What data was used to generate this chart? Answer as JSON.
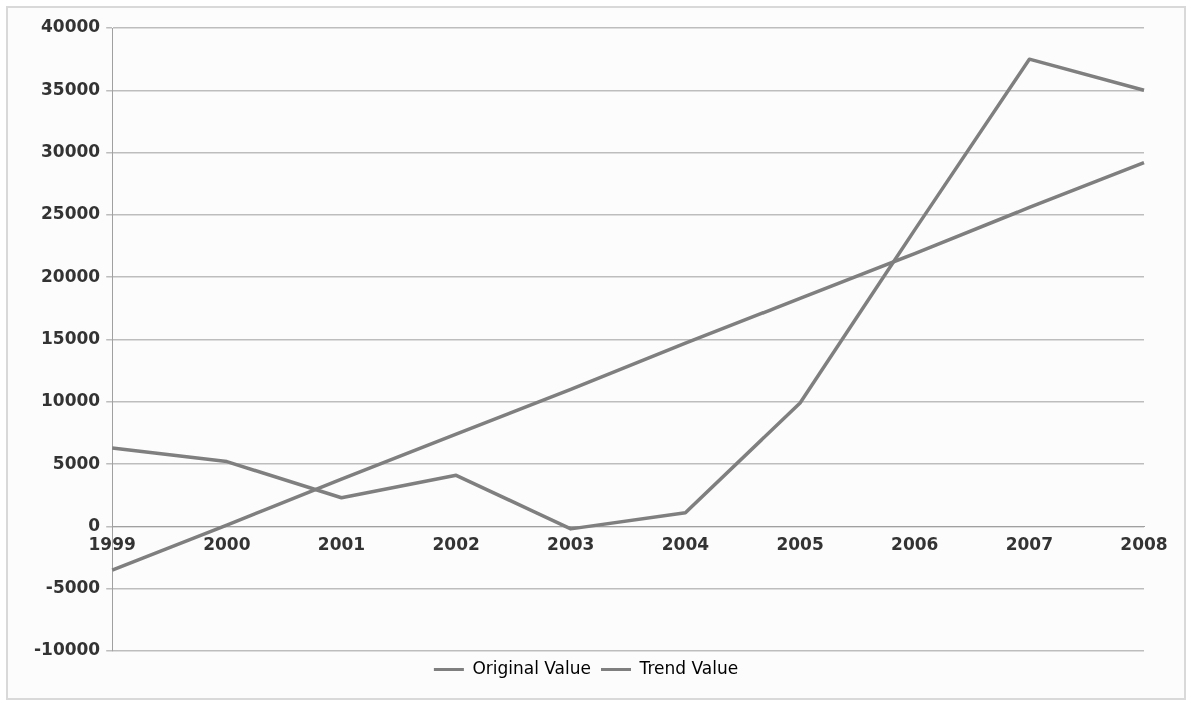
{
  "chart_data": {
    "type": "line",
    "categories": [
      "1999",
      "2000",
      "2001",
      "2002",
      "2003",
      "2004",
      "2005",
      "2006",
      "2007",
      "2008"
    ],
    "series": [
      {
        "name": "Original Value",
        "color": "#7f7f7f",
        "values": [
          6300,
          5200,
          2300,
          4100,
          -200,
          1100,
          9900,
          23800,
          37500,
          35000
        ]
      },
      {
        "name": "Trend Value",
        "color": "#7f7f7f",
        "values": [
          -3500,
          100,
          3800,
          7400,
          11000,
          14700,
          18300,
          21900,
          25600,
          29200
        ]
      }
    ],
    "ylim": [
      -10000,
      40000
    ],
    "yticks": [
      -10000,
      -5000,
      0,
      5000,
      10000,
      15000,
      20000,
      25000,
      30000,
      35000,
      40000
    ],
    "grid": "y",
    "legend": "bottom",
    "marker": "none",
    "line_style": "solid"
  }
}
